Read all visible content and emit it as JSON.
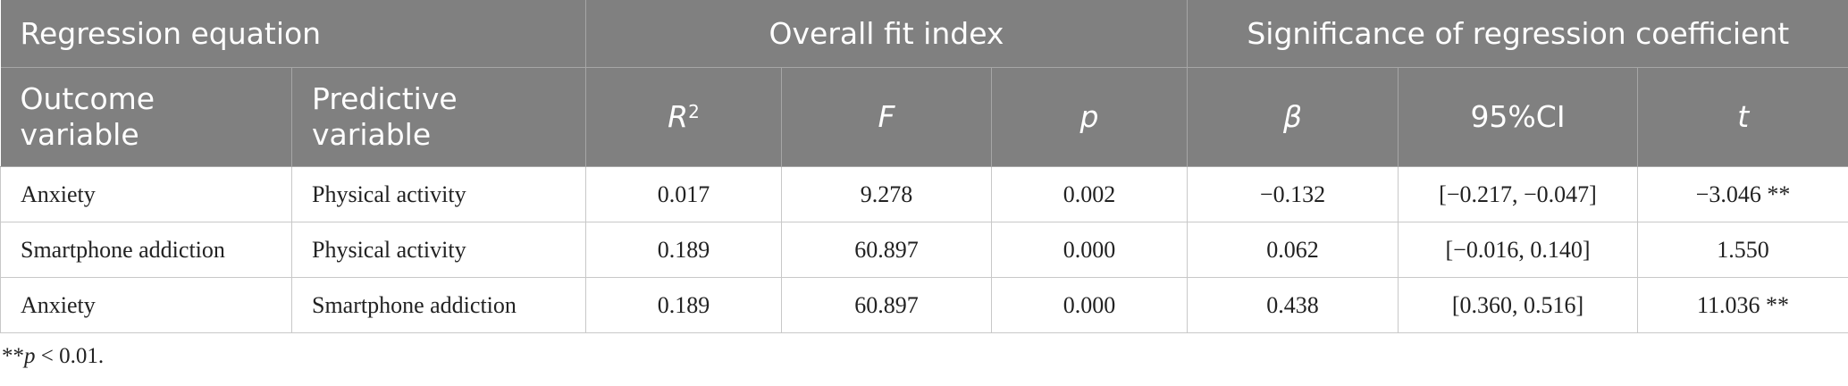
{
  "table": {
    "group_headers": [
      {
        "text": "Regression equation",
        "span": 2
      },
      {
        "text": "Overall fit index",
        "span": 3
      },
      {
        "text": "Significance of regression coefficient",
        "span": 3
      }
    ],
    "columns": [
      {
        "text": "Outcome variable"
      },
      {
        "text": "Predictive variable"
      },
      {
        "text": "R",
        "sup": "2"
      },
      {
        "text": "F"
      },
      {
        "text": "p"
      },
      {
        "text": "β"
      },
      {
        "text": "95%CI"
      },
      {
        "text": "t"
      }
    ],
    "rows": [
      [
        "Anxiety",
        "Physical activity",
        "0.017",
        "9.278",
        "0.002",
        "−0.132",
        "[−0.217, −0.047]",
        "−3.046 **"
      ],
      [
        "Smartphone addiction",
        "Physical activity",
        "0.189",
        "60.897",
        "0.000",
        "0.062",
        "[−0.016, 0.140]",
        "1.550"
      ],
      [
        "Anxiety",
        "Smartphone addiction",
        "0.189",
        "60.897",
        "0.000",
        "0.438",
        "[0.360, 0.516]",
        "11.036 **"
      ]
    ]
  },
  "footnote": {
    "stars": "**",
    "symbol": "p",
    "rest": " < 0.01."
  }
}
